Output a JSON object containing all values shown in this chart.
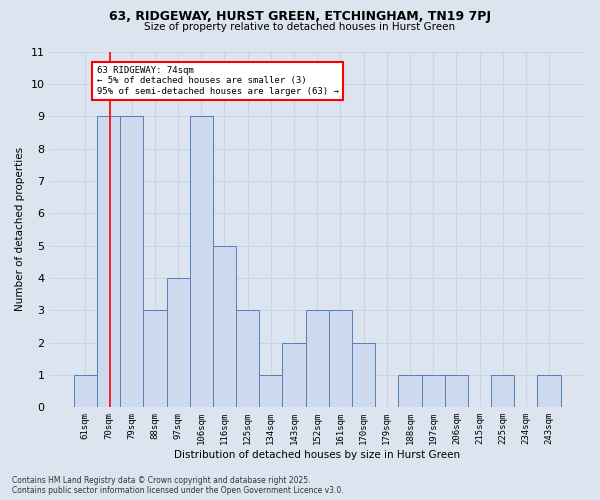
{
  "title": "63, RIDGEWAY, HURST GREEN, ETCHINGHAM, TN19 7PJ",
  "subtitle": "Size of property relative to detached houses in Hurst Green",
  "xlabel": "Distribution of detached houses by size in Hurst Green",
  "ylabel": "Number of detached properties",
  "bin_labels": [
    "61sqm",
    "70sqm",
    "79sqm",
    "88sqm",
    "97sqm",
    "106sqm",
    "116sqm",
    "125sqm",
    "134sqm",
    "143sqm",
    "152sqm",
    "161sqm",
    "170sqm",
    "179sqm",
    "188sqm",
    "197sqm",
    "206sqm",
    "215sqm",
    "225sqm",
    "234sqm",
    "243sqm"
  ],
  "bar_values": [
    1,
    9,
    9,
    3,
    4,
    9,
    5,
    3,
    1,
    2,
    3,
    3,
    2,
    0,
    1,
    1,
    1,
    0,
    1,
    0,
    1
  ],
  "bar_color": "#ccd9ee",
  "bar_edgecolor": "#5580b0",
  "red_line_x": 1.05,
  "annotation_text": "63 RIDGEWAY: 74sqm\n← 5% of detached houses are smaller (3)\n95% of semi-detached houses are larger (63) →",
  "annotation_box_color": "white",
  "annotation_box_edgecolor": "red",
  "ylim": [
    0,
    11
  ],
  "yticks": [
    0,
    1,
    2,
    3,
    4,
    5,
    6,
    7,
    8,
    9,
    10,
    11
  ],
  "grid_color": "#c8d4e8",
  "background_color": "#dce4f0",
  "plot_bg_color": "#dce4f0",
  "footnote": "Contains HM Land Registry data © Crown copyright and database right 2025.\nContains public sector information licensed under the Open Government Licence v3.0."
}
